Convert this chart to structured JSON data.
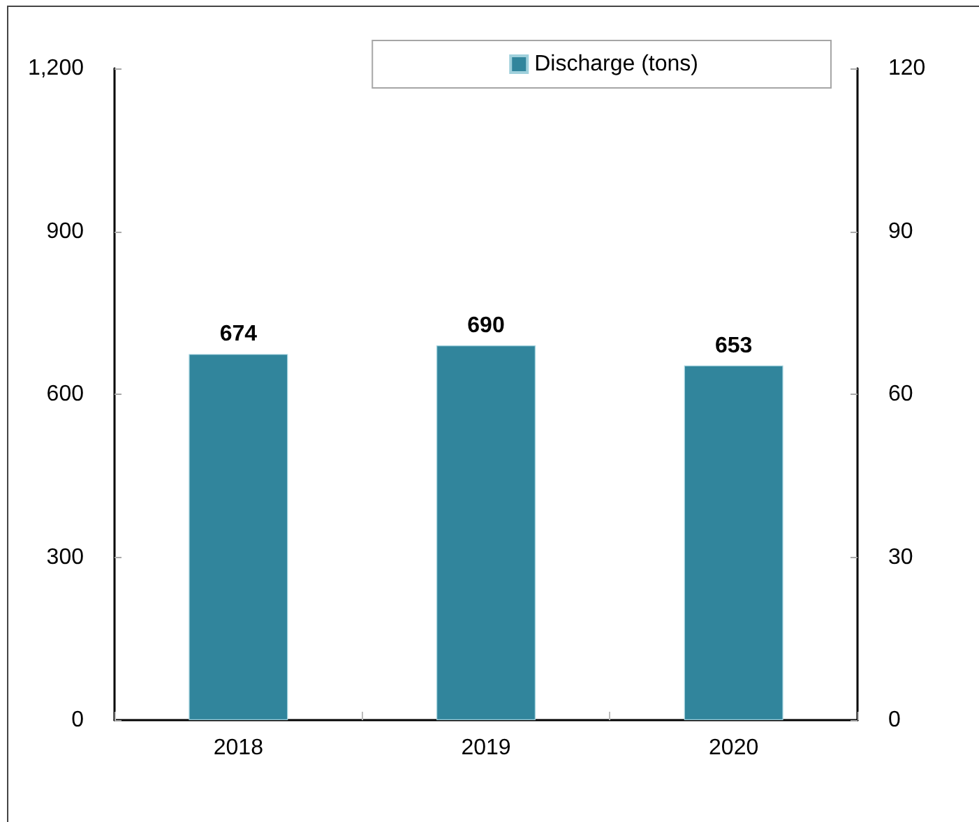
{
  "chart_data": {
    "type": "bar",
    "categories": [
      "2018",
      "2019",
      "2020"
    ],
    "series": [
      {
        "name": "Discharge (tons)",
        "color": "#31859c",
        "values": [
          674,
          690,
          653
        ]
      }
    ],
    "ylim": [
      0,
      1200
    ],
    "yticks": [
      0,
      300,
      600,
      900,
      {
        "value": 1200,
        "label": "1,200"
      }
    ],
    "y2lim": [
      0,
      120
    ],
    "y2ticks": [
      0,
      30,
      60,
      90,
      120
    ],
    "data_labels": true,
    "legend": "top right"
  }
}
